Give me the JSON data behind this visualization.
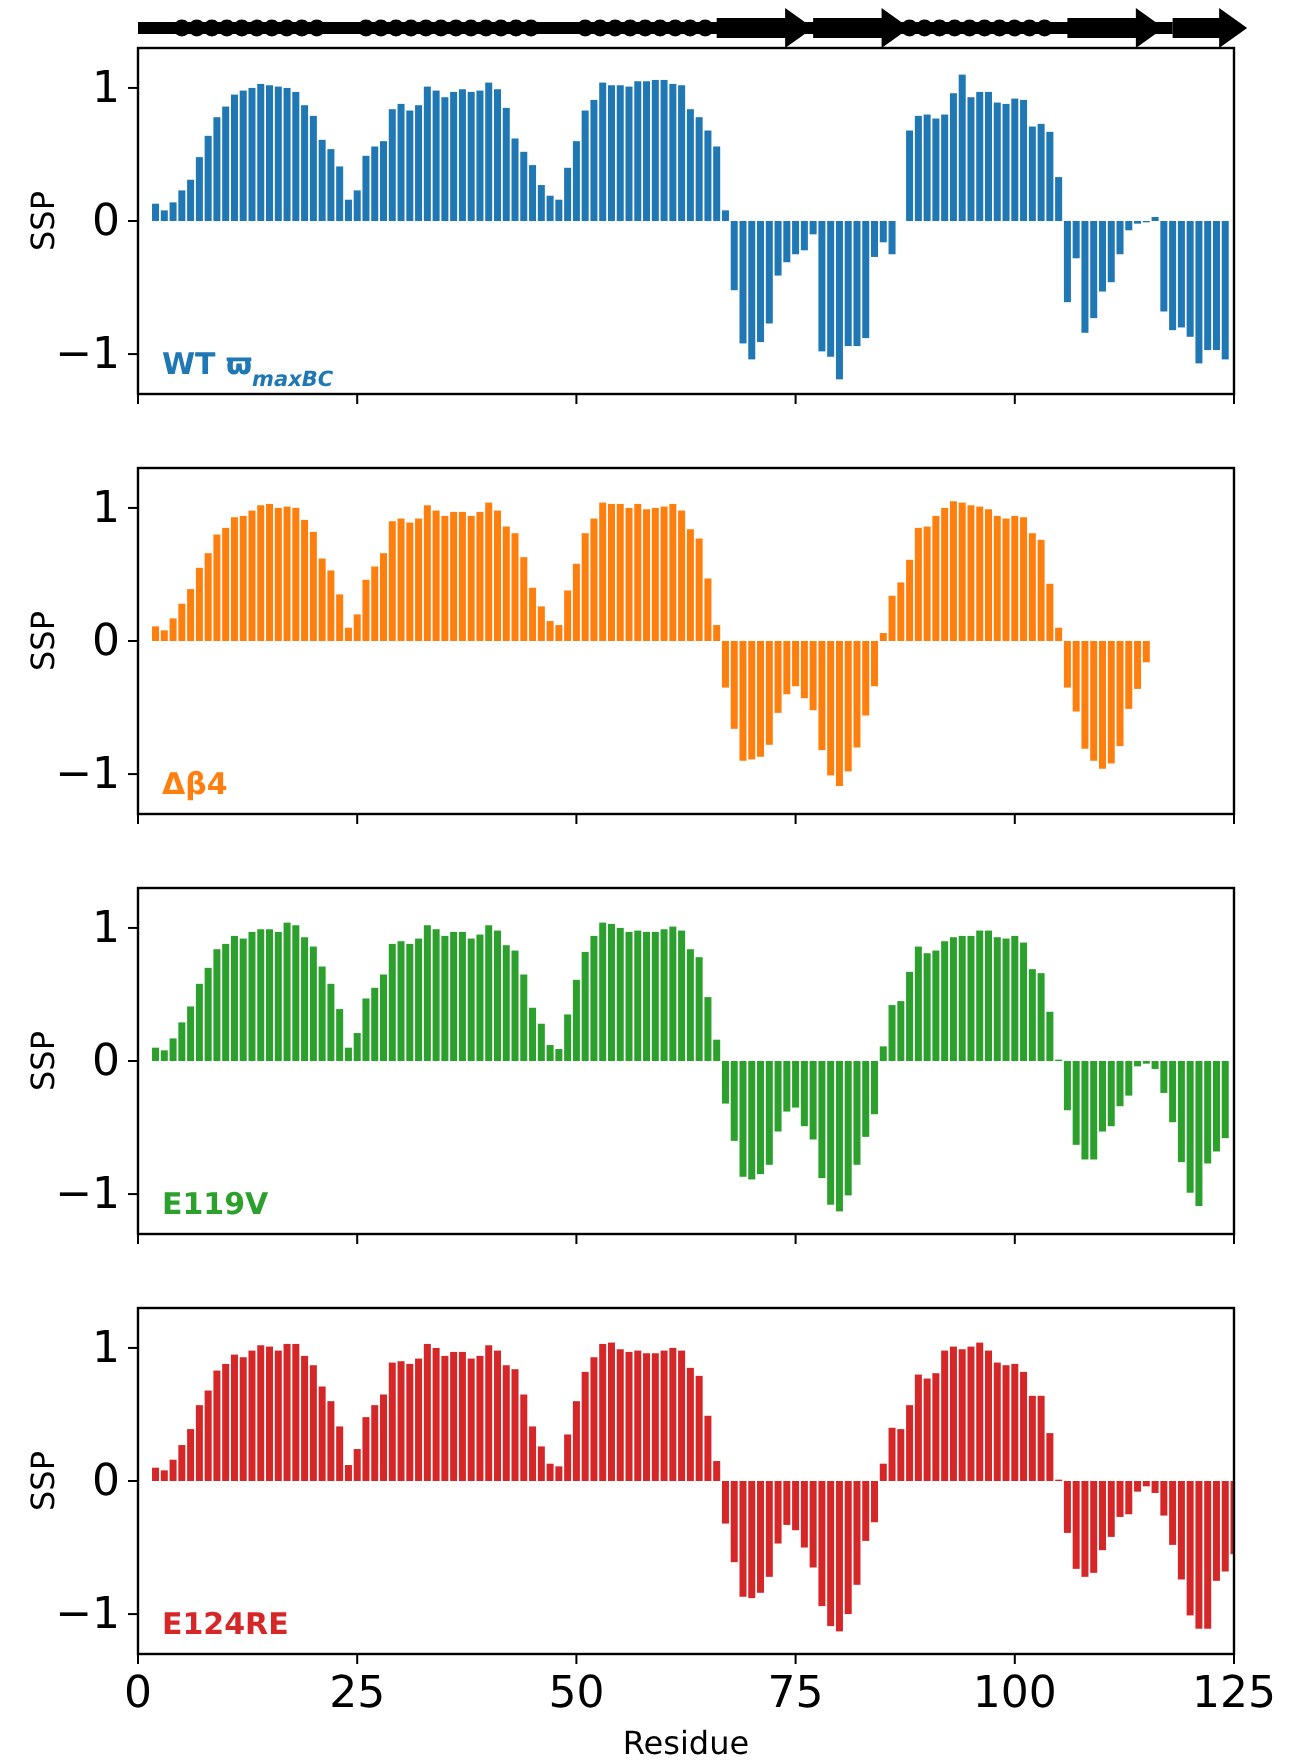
{
  "chart_data": [
    {
      "type": "bar",
      "x": [
        2,
        3,
        4,
        5,
        6,
        7,
        8,
        9,
        10,
        11,
        12,
        13,
        14,
        15,
        16,
        17,
        18,
        19,
        20,
        21,
        22,
        23,
        24,
        25,
        26,
        27,
        28,
        29,
        30,
        31,
        32,
        33,
        34,
        35,
        36,
        37,
        38,
        39,
        40,
        41,
        42,
        43,
        44,
        45,
        46,
        47,
        48,
        49,
        50,
        51,
        52,
        53,
        54,
        55,
        56,
        57,
        58,
        59,
        60,
        61,
        62,
        63,
        64,
        65,
        66,
        67,
        68,
        69,
        70,
        71,
        72,
        73,
        74,
        75,
        76,
        77,
        78,
        79,
        80,
        81,
        82,
        83,
        84,
        85,
        86,
        87,
        88,
        89,
        90,
        91,
        92,
        93,
        94,
        95,
        96,
        97,
        98,
        99,
        100,
        101,
        102,
        103,
        104,
        105,
        106,
        107,
        108,
        109,
        110,
        111,
        112,
        113,
        114,
        115,
        116,
        117,
        118,
        119,
        120,
        121,
        122,
        123,
        124
      ],
      "series": [
        {
          "color": "#1f77b4",
          "values": [
            0.13,
            0.08,
            0.14,
            0.23,
            0.31,
            0.48,
            0.64,
            0.78,
            0.86,
            0.95,
            0.98,
            1.0,
            1.03,
            1.02,
            1.01,
            1.0,
            0.97,
            0.87,
            0.79,
            0.61,
            0.54,
            0.41,
            0.16,
            0.23,
            0.49,
            0.56,
            0.6,
            0.84,
            0.88,
            0.83,
            0.87,
            1.01,
            0.98,
            0.93,
            0.97,
            0.99,
            0.97,
            0.98,
            1.04,
            0.99,
            0.85,
            0.62,
            0.52,
            0.42,
            0.27,
            0.19,
            0.16,
            0.4,
            0.6,
            0.83,
            0.91,
            1.04,
            1.02,
            1.02,
            1.01,
            1.05,
            1.05,
            1.06,
            1.06,
            1.03,
            1.02,
            0.84,
            0.78,
            0.68,
            0.56,
            0.08,
            -0.52,
            -0.92,
            -1.04,
            -0.91,
            -0.77,
            -0.41,
            -0.31,
            -0.25,
            -0.22,
            -0.1,
            -0.98,
            -1.02,
            -1.19,
            -0.94,
            -0.94,
            -0.88,
            -0.27,
            -0.16,
            -0.25,
            0,
            0.68,
            0.79,
            0.8,
            0.77,
            0.8,
            0.96,
            1.1,
            0.93,
            0.97,
            0.97,
            0.89,
            0.88,
            0.92,
            0.91,
            0.71,
            0.73,
            0.67,
            0.33,
            -0.61,
            -0.28,
            -0.84,
            -0.73,
            -0.53,
            -0.46,
            -0.25,
            -0.07,
            -0.02,
            -0.01,
            0.03,
            -0.68,
            -0.82,
            -0.8,
            -0.87,
            -1.07,
            -0.97,
            -0.97,
            -1.04
          ]
        }
      ],
      "xlim": [
        0,
        125
      ],
      "xticks": [
        0,
        25,
        50,
        75,
        100,
        125
      ],
      "ylim": [
        -1.3,
        1.3
      ],
      "yticks": [
        -1,
        0,
        1
      ],
      "ylabel": "SSP",
      "tick_labels": "y",
      "annotations": [
        "WT ϖ$_{maxBC}$"
      ]
    },
    {
      "type": "bar",
      "x": [
        2,
        3,
        4,
        5,
        6,
        7,
        8,
        9,
        10,
        11,
        12,
        13,
        14,
        15,
        16,
        17,
        18,
        19,
        20,
        21,
        22,
        23,
        24,
        25,
        26,
        27,
        28,
        29,
        30,
        31,
        32,
        33,
        34,
        35,
        36,
        37,
        38,
        39,
        40,
        41,
        42,
        43,
        44,
        45,
        46,
        47,
        48,
        49,
        50,
        51,
        52,
        53,
        54,
        55,
        56,
        57,
        58,
        59,
        60,
        61,
        62,
        63,
        64,
        65,
        66,
        67,
        68,
        69,
        70,
        71,
        72,
        73,
        74,
        75,
        76,
        77,
        78,
        79,
        80,
        81,
        82,
        83,
        84,
        85,
        86,
        87,
        88,
        89,
        90,
        91,
        92,
        93,
        94,
        95,
        96,
        97,
        98,
        99,
        100,
        101,
        102,
        103,
        104,
        105,
        106,
        107,
        108,
        109,
        110,
        111,
        112,
        113,
        114,
        115
      ],
      "series": [
        {
          "color": "#ff7f0e",
          "values": [
            0.11,
            0.08,
            0.17,
            0.28,
            0.39,
            0.55,
            0.66,
            0.8,
            0.85,
            0.93,
            0.94,
            0.98,
            1.02,
            1.03,
            1.0,
            1.01,
            1.0,
            0.91,
            0.82,
            0.62,
            0.53,
            0.35,
            0.1,
            0.2,
            0.46,
            0.56,
            0.66,
            0.9,
            0.92,
            0.89,
            0.92,
            1.02,
            0.98,
            0.94,
            0.97,
            0.97,
            0.94,
            0.97,
            1.04,
            0.98,
            0.86,
            0.81,
            0.63,
            0.4,
            0.26,
            0.15,
            0.12,
            0.38,
            0.58,
            0.81,
            0.92,
            1.04,
            1.03,
            1.03,
            1.0,
            1.03,
            0.99,
            1.0,
            1.01,
            1.03,
            0.98,
            0.84,
            0.77,
            0.47,
            0.12,
            -0.35,
            -0.66,
            -0.9,
            -0.89,
            -0.87,
            -0.78,
            -0.54,
            -0.4,
            -0.34,
            -0.43,
            -0.52,
            -0.82,
            -1.01,
            -1.09,
            -0.98,
            -0.8,
            -0.56,
            -0.34,
            0.06,
            0.34,
            0.44,
            0.61,
            0.85,
            0.86,
            0.94,
            1.0,
            1.05,
            1.04,
            1.02,
            1.01,
            0.99,
            0.94,
            0.92,
            0.94,
            0.93,
            0.81,
            0.76,
            0.43,
            0.1,
            -0.35,
            -0.53,
            -0.81,
            -0.9,
            -0.96,
            -0.92,
            -0.79,
            -0.51,
            -0.36,
            -0.16
          ]
        }
      ],
      "xlim": [
        0,
        125
      ],
      "xticks": [
        0,
        25,
        50,
        75,
        100,
        125
      ],
      "ylim": [
        -1.3,
        1.3
      ],
      "yticks": [
        -1,
        0,
        1
      ],
      "ylabel": "SSP",
      "tick_labels": "y",
      "annotations": [
        "Δβ4"
      ]
    },
    {
      "type": "bar",
      "x": [
        2,
        3,
        4,
        5,
        6,
        7,
        8,
        9,
        10,
        11,
        12,
        13,
        14,
        15,
        16,
        17,
        18,
        19,
        20,
        21,
        22,
        23,
        24,
        25,
        26,
        27,
        28,
        29,
        30,
        31,
        32,
        33,
        34,
        35,
        36,
        37,
        38,
        39,
        40,
        41,
        42,
        43,
        44,
        45,
        46,
        47,
        48,
        49,
        50,
        51,
        52,
        53,
        54,
        55,
        56,
        57,
        58,
        59,
        60,
        61,
        62,
        63,
        64,
        65,
        66,
        67,
        68,
        69,
        70,
        71,
        72,
        73,
        74,
        75,
        76,
        77,
        78,
        79,
        80,
        81,
        82,
        83,
        84,
        85,
        86,
        87,
        88,
        89,
        90,
        91,
        92,
        93,
        94,
        95,
        96,
        97,
        98,
        99,
        100,
        101,
        102,
        103,
        104,
        105,
        106,
        107,
        108,
        109,
        110,
        111,
        112,
        113,
        114,
        115,
        116,
        117,
        118,
        119,
        120,
        121,
        122,
        123,
        124
      ],
      "series": [
        {
          "color": "#2ca02c",
          "values": [
            0.1,
            0.08,
            0.17,
            0.29,
            0.41,
            0.58,
            0.7,
            0.84,
            0.88,
            0.94,
            0.92,
            0.97,
            0.99,
            0.99,
            0.97,
            1.04,
            1.02,
            0.93,
            0.86,
            0.71,
            0.58,
            0.39,
            0.1,
            0.21,
            0.47,
            0.55,
            0.65,
            0.88,
            0.9,
            0.88,
            0.92,
            1.02,
            0.99,
            0.94,
            0.97,
            0.97,
            0.92,
            0.95,
            1.02,
            0.98,
            0.87,
            0.83,
            0.65,
            0.4,
            0.28,
            0.12,
            0.09,
            0.35,
            0.61,
            0.82,
            0.94,
            1.04,
            1.03,
            1.0,
            0.97,
            0.98,
            0.97,
            0.97,
            0.99,
            1.01,
            0.98,
            0.84,
            0.78,
            0.48,
            0.16,
            -0.32,
            -0.6,
            -0.87,
            -0.89,
            -0.85,
            -0.78,
            -0.53,
            -0.38,
            -0.35,
            -0.49,
            -0.59,
            -0.88,
            -1.08,
            -1.13,
            -1.01,
            -0.78,
            -0.57,
            -0.4,
            0.11,
            0.42,
            0.45,
            0.67,
            0.86,
            0.81,
            0.83,
            0.9,
            0.93,
            0.94,
            0.94,
            0.98,
            0.98,
            0.93,
            0.92,
            0.94,
            0.89,
            0.69,
            0.66,
            0.37,
            0.01,
            -0.37,
            -0.63,
            -0.74,
            -0.74,
            -0.53,
            -0.49,
            -0.34,
            -0.26,
            -0.04,
            -0.02,
            -0.06,
            -0.24,
            -0.46,
            -0.76,
            -0.99,
            -1.09,
            -0.77,
            -0.68,
            -0.58
          ]
        }
      ],
      "xlim": [
        0,
        125
      ],
      "xticks": [
        0,
        25,
        50,
        75,
        100,
        125
      ],
      "ylim": [
        -1.3,
        1.3
      ],
      "yticks": [
        -1,
        0,
        1
      ],
      "ylabel": "SSP",
      "tick_labels": "y",
      "annotations": [
        "E119V"
      ]
    },
    {
      "type": "bar",
      "x": [
        2,
        3,
        4,
        5,
        6,
        7,
        8,
        9,
        10,
        11,
        12,
        13,
        14,
        15,
        16,
        17,
        18,
        19,
        20,
        21,
        22,
        23,
        24,
        25,
        26,
        27,
        28,
        29,
        30,
        31,
        32,
        33,
        34,
        35,
        36,
        37,
        38,
        39,
        40,
        41,
        42,
        43,
        44,
        45,
        46,
        47,
        48,
        49,
        50,
        51,
        52,
        53,
        54,
        55,
        56,
        57,
        58,
        59,
        60,
        61,
        62,
        63,
        64,
        65,
        66,
        67,
        68,
        69,
        70,
        71,
        72,
        73,
        74,
        75,
        76,
        77,
        78,
        79,
        80,
        81,
        82,
        83,
        84,
        85,
        86,
        87,
        88,
        89,
        90,
        91,
        92,
        93,
        94,
        95,
        96,
        97,
        98,
        99,
        100,
        101,
        102,
        103,
        104,
        105,
        106,
        107,
        108,
        109,
        110,
        111,
        112,
        113,
        114,
        115,
        116,
        117,
        118,
        119,
        120,
        121,
        122,
        123,
        124,
        125
      ],
      "series": [
        {
          "color": "#d62728",
          "values": [
            0.1,
            0.08,
            0.16,
            0.27,
            0.39,
            0.57,
            0.68,
            0.83,
            0.88,
            0.95,
            0.93,
            0.98,
            1.02,
            1.01,
            0.98,
            1.03,
            1.03,
            0.94,
            0.87,
            0.71,
            0.6,
            0.41,
            0.12,
            0.24,
            0.48,
            0.57,
            0.65,
            0.89,
            0.9,
            0.88,
            0.92,
            1.03,
            1.0,
            0.94,
            0.97,
            0.97,
            0.92,
            0.94,
            1.02,
            0.98,
            0.87,
            0.84,
            0.65,
            0.41,
            0.26,
            0.13,
            0.11,
            0.35,
            0.6,
            0.82,
            0.93,
            1.03,
            1.04,
            0.99,
            0.97,
            0.98,
            0.96,
            0.96,
            0.98,
            1.0,
            0.98,
            0.85,
            0.79,
            0.49,
            0.15,
            -0.32,
            -0.61,
            -0.87,
            -0.88,
            -0.84,
            -0.72,
            -0.47,
            -0.33,
            -0.37,
            -0.5,
            -0.65,
            -0.94,
            -1.09,
            -1.13,
            -1.0,
            -0.78,
            -0.45,
            -0.31,
            0.13,
            0.4,
            0.39,
            0.57,
            0.8,
            0.77,
            0.81,
            0.98,
            1.01,
            0.99,
            1.01,
            1.04,
            0.98,
            0.89,
            0.87,
            0.88,
            0.82,
            0.64,
            0.64,
            0.36,
            0.01,
            -0.39,
            -0.66,
            -0.72,
            -0.69,
            -0.52,
            -0.42,
            -0.27,
            -0.25,
            -0.08,
            -0.04,
            -0.09,
            -0.26,
            -0.48,
            -0.74,
            -1.01,
            -1.11,
            -1.11,
            -0.75,
            -0.68,
            -0.55
          ]
        }
      ],
      "xlim": [
        0,
        125
      ],
      "xticks": [
        0,
        25,
        50,
        75,
        100,
        125
      ],
      "ylim": [
        -1.3,
        1.3
      ],
      "yticks": [
        -1,
        0,
        1
      ],
      "ylabel": "SSP",
      "xlabel": "Residue",
      "annotations": [
        "E124RE"
      ]
    }
  ]
}
